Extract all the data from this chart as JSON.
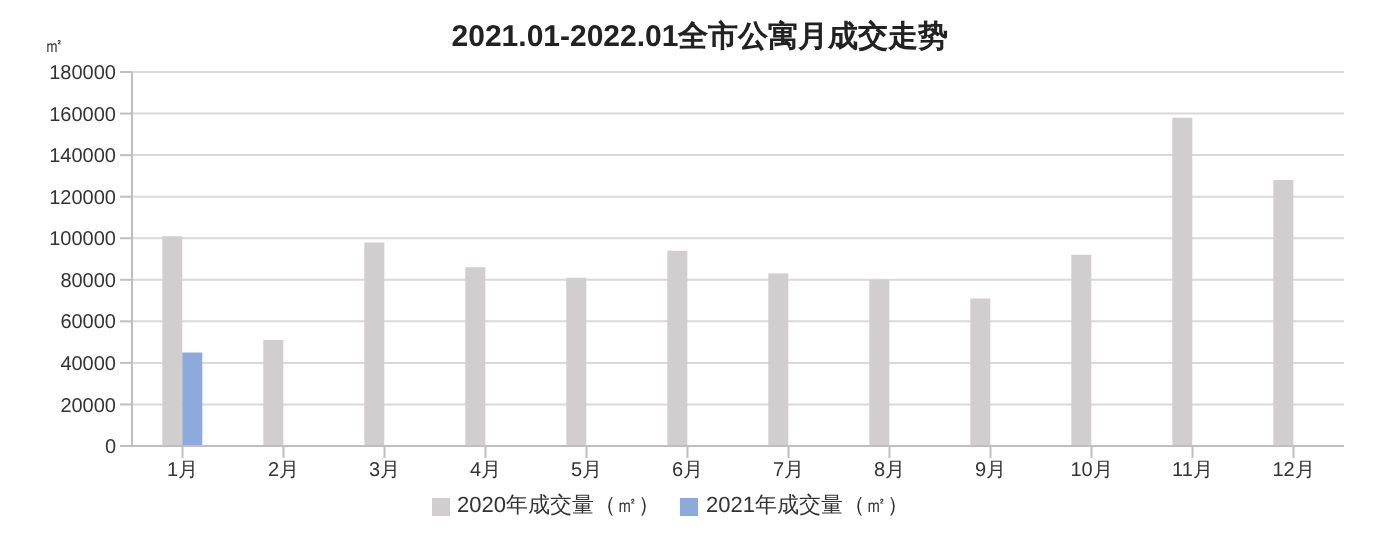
{
  "chart_data": {
    "type": "bar",
    "title": "2021.01-2022.01全市公寓月成交走势",
    "ylabel": "㎡",
    "categories": [
      "1月",
      "2月",
      "3月",
      "4月",
      "5月",
      "6月",
      "7月",
      "8月",
      "9月",
      "10月",
      "11月",
      "12月"
    ],
    "series": [
      {
        "name": "2020年成交量（㎡）",
        "color": "#d0cece",
        "values": [
          101000,
          51000,
          98000,
          86000,
          81000,
          94000,
          83000,
          80000,
          71000,
          92000,
          158000,
          128000
        ]
      },
      {
        "name": "2021年成交量（㎡）",
        "color": "#8eaadb",
        "values": [
          45000,
          null,
          null,
          null,
          null,
          null,
          null,
          null,
          null,
          null,
          null,
          null
        ]
      }
    ],
    "ylim": [
      0,
      180000
    ],
    "yticks": [
      0,
      20000,
      40000,
      60000,
      80000,
      100000,
      120000,
      140000,
      160000,
      180000
    ],
    "grid": "y",
    "legend": "bottom"
  }
}
